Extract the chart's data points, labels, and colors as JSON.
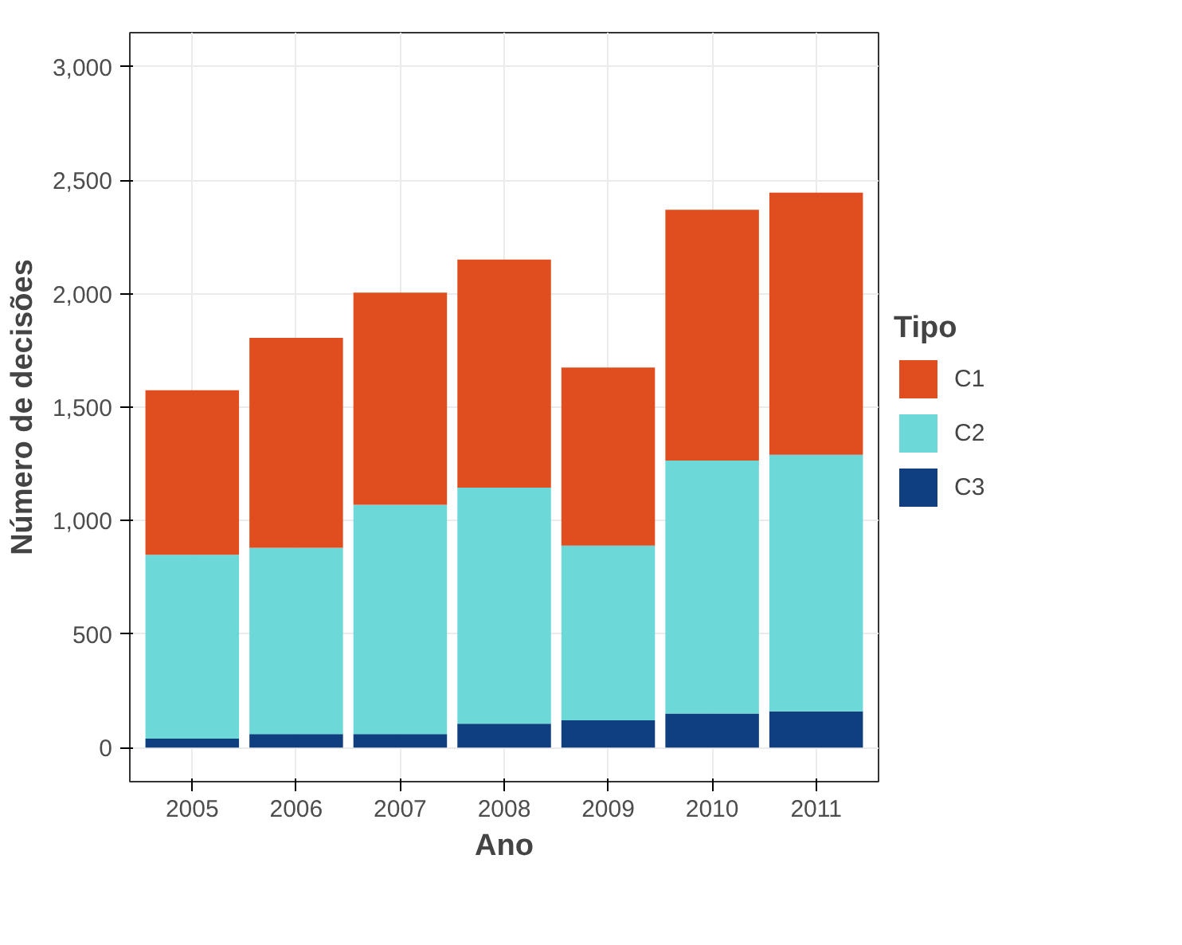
{
  "chart_data": {
    "type": "bar",
    "stacked": true,
    "xlabel": "Ano",
    "ylabel": "Número de decisões",
    "legend_title": "Tipo",
    "legend": "right",
    "grid": true,
    "categories": [
      "2005",
      "2006",
      "2007",
      "2008",
      "2009",
      "2010",
      "2011"
    ],
    "ylim": [
      -150,
      3150
    ],
    "yticks": [
      {
        "value": 0,
        "label": "0"
      },
      {
        "value": 500,
        "label": "500"
      },
      {
        "value": 1000,
        "label": "1,000"
      },
      {
        "value": 1500,
        "label": "1,500"
      },
      {
        "value": 2000,
        "label": "2,000"
      },
      {
        "value": 2500,
        "label": "2,500"
      },
      {
        "value": 3000,
        "label": "3,000"
      }
    ],
    "series": [
      {
        "name": "C3",
        "color": "#0f3f7f",
        "values": [
          40,
          60,
          60,
          105,
          120,
          150,
          160
        ]
      },
      {
        "name": "C2",
        "color": "#6dd8d8",
        "values": [
          810,
          820,
          1010,
          1040,
          770,
          1115,
          1130
        ]
      },
      {
        "name": "C1",
        "color": "#e04e20",
        "values": [
          725,
          925,
          935,
          1005,
          785,
          1105,
          1155
        ]
      }
    ]
  }
}
